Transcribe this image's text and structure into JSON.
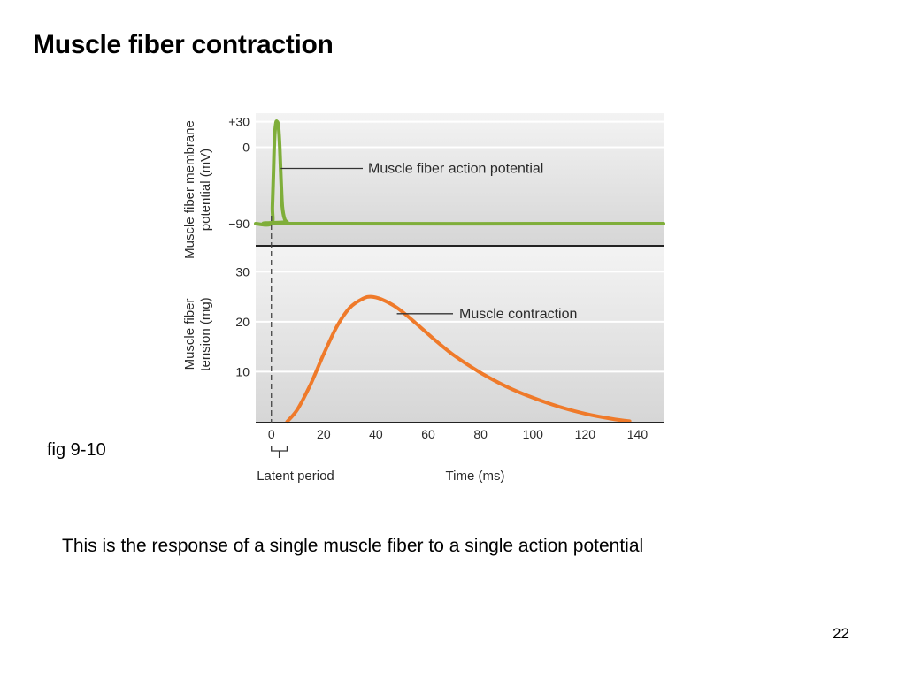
{
  "slide": {
    "title": "Muscle fiber contraction",
    "fig_label": "fig 9-10",
    "caption": "This is the response of a single muscle fiber to a single action potential",
    "page_number": "22"
  },
  "colors": {
    "action_potential": "#7fae3a",
    "contraction": "#ef7a2a",
    "panel_top": "#f3f3f3",
    "panel_bottom": "#d6d6d6"
  },
  "chart_data": {
    "type": "line",
    "x": {
      "label": "Time (ms)",
      "range": [
        -6,
        150
      ],
      "ticks": [
        0,
        20,
        40,
        60,
        80,
        100,
        120,
        140
      ],
      "tick_labels": [
        "0",
        "20",
        "40",
        "60",
        "80",
        "100",
        "120",
        "140"
      ]
    },
    "latent_period": {
      "label": "Latent period",
      "start": 0,
      "end": 6
    },
    "panels": [
      {
        "ylabel": [
          "Muscle fiber membrane",
          "potential (mV)"
        ],
        "ylim": [
          -115,
          40
        ],
        "yticks": [
          30,
          0,
          -90
        ],
        "ytick_labels": [
          "+30",
          "0",
          "−90"
        ],
        "grid": true,
        "series": [
          {
            "annotation": "Muscle fiber action potential",
            "points": [
              [
                -6,
                -90
              ],
              [
                0,
                -90
              ],
              [
                0.4,
                -70
              ],
              [
                0.8,
                -30
              ],
              [
                1.2,
                10
              ],
              [
                1.7,
                28
              ],
              [
                2.2,
                30
              ],
              [
                2.7,
                25
              ],
              [
                3.2,
                0
              ],
              [
                3.7,
                -40
              ],
              [
                4.2,
                -70
              ],
              [
                5,
                -84
              ],
              [
                6,
                -88
              ],
              [
                8,
                -90
              ],
              [
                150,
                -90
              ]
            ]
          }
        ]
      },
      {
        "ylabel": [
          "Muscle fiber",
          "tension (mg)"
        ],
        "ylim": [
          0,
          35
        ],
        "yticks": [
          30,
          20,
          10
        ],
        "ytick_labels": [
          "30",
          "20",
          "10"
        ],
        "grid": true,
        "series": [
          {
            "annotation": "Muscle contraction",
            "points": [
              [
                6,
                0
              ],
              [
                10,
                2.5
              ],
              [
                15,
                7.5
              ],
              [
                20,
                13.5
              ],
              [
                25,
                19
              ],
              [
                30,
                22.8
              ],
              [
                35,
                24.6
              ],
              [
                38,
                25
              ],
              [
                42,
                24.5
              ],
              [
                48,
                22.8
              ],
              [
                55,
                19.8
              ],
              [
                62,
                16.6
              ],
              [
                70,
                13.2
              ],
              [
                80,
                9.8
              ],
              [
                90,
                7.0
              ],
              [
                100,
                4.8
              ],
              [
                110,
                3.0
              ],
              [
                120,
                1.6
              ],
              [
                130,
                0.6
              ],
              [
                137,
                0.1
              ]
            ]
          }
        ]
      }
    ]
  }
}
